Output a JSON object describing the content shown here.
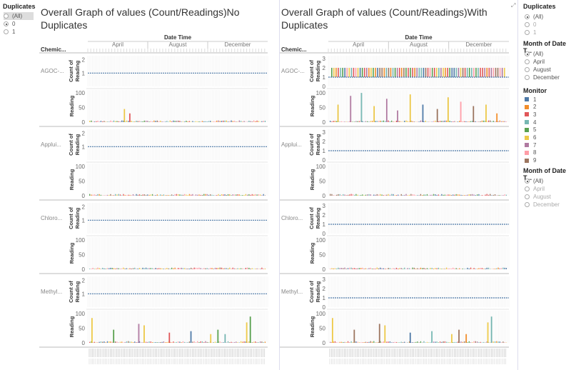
{
  "left_filter": {
    "title": "Duplicates",
    "options": [
      {
        "label": "(All)",
        "selected": false,
        "highlight": true
      },
      {
        "label": "0",
        "selected": true
      },
      {
        "label": "1",
        "selected": false
      }
    ]
  },
  "right_panel": {
    "duplicates": {
      "title": "Duplicates",
      "options": [
        {
          "label": "(All)",
          "selected": true
        },
        {
          "label": "0",
          "selected": false,
          "dim": true
        },
        {
          "label": "1",
          "selected": false,
          "dim": true
        }
      ]
    },
    "month_filter_1": {
      "title": "Month of Date T...",
      "options": [
        {
          "label": "(All)",
          "selected": true
        },
        {
          "label": "April",
          "selected": false
        },
        {
          "label": "August",
          "selected": false
        },
        {
          "label": "December",
          "selected": false
        }
      ]
    },
    "monitor_legend": {
      "title": "Monitor",
      "items": [
        {
          "label": "1",
          "color": "#4e79a7"
        },
        {
          "label": "2",
          "color": "#f28e2b"
        },
        {
          "label": "3",
          "color": "#e15759"
        },
        {
          "label": "4",
          "color": "#76b7b2"
        },
        {
          "label": "5",
          "color": "#59a14f"
        },
        {
          "label": "6",
          "color": "#edc948"
        },
        {
          "label": "7",
          "color": "#b07aa1"
        },
        {
          "label": "8",
          "color": "#ff9da7"
        },
        {
          "label": "9",
          "color": "#9c755f"
        }
      ]
    },
    "month_filter_2": {
      "title": "Month of Date T...",
      "options": [
        {
          "label": "(All)",
          "selected": true
        },
        {
          "label": "April",
          "selected": false,
          "dim": true
        },
        {
          "label": "August",
          "selected": false,
          "dim": true
        },
        {
          "label": "December",
          "selected": false,
          "dim": true
        }
      ]
    }
  },
  "chart_data": [
    {
      "type": "bar",
      "title": "Overall Graph of values (Count/Readings)No Duplicates",
      "column_header": "Date Time",
      "months": [
        "April",
        "August",
        "December"
      ],
      "row_header": "Chemic...",
      "chemicals": [
        "AGOC-...",
        "Applui...",
        "Chloro...",
        "Methyl..."
      ],
      "count_axis": {
        "label": "Count of Reading",
        "ticks": [
          1,
          2
        ],
        "ylim": [
          0,
          2.3
        ]
      },
      "reading_axis": {
        "label": "Reading",
        "ticks": [
          0,
          50,
          100
        ],
        "ylim": [
          0,
          110
        ]
      },
      "count_value": 1,
      "reading_series": [
        {
          "chemical": "AGOC-...",
          "monitor": "6",
          "peaks": [
            [
              0.2,
              45
            ],
            [
              0.23,
              30
            ]
          ]
        },
        {
          "chemical": "Applui...",
          "monitor": "6",
          "peaks": []
        },
        {
          "chemical": "Chloro...",
          "monitor": "6",
          "peaks": []
        },
        {
          "chemical": "Methyl...",
          "monitor": "6",
          "peaks": [
            [
              0.02,
              85
            ],
            [
              0.14,
              45
            ],
            [
              0.28,
              65
            ],
            [
              0.31,
              60
            ],
            [
              0.45,
              35
            ],
            [
              0.57,
              40
            ],
            [
              0.68,
              30
            ],
            [
              0.72,
              45
            ],
            [
              0.76,
              30
            ],
            [
              0.88,
              70
            ],
            [
              0.9,
              90
            ]
          ]
        }
      ]
    },
    {
      "type": "bar",
      "title": "Overall Graph of values (Count/Readings)With Duplicates",
      "column_header": "Date Time",
      "months": [
        "April",
        "August",
        "December"
      ],
      "row_header": "Chemic...",
      "chemicals": [
        "AGOC-...",
        "Applui...",
        "Chloro...",
        "Methyl..."
      ],
      "count_axis": {
        "label": "Count of Reading",
        "ticks": [
          0,
          1,
          2,
          3
        ],
        "ylim": [
          0,
          3.3
        ]
      },
      "reading_axis": {
        "label": "Reading",
        "ticks": [
          0,
          50,
          100
        ],
        "ylim": [
          0,
          110
        ]
      },
      "count_value": 1,
      "duplicate_count_value": 2,
      "reading_series": [
        {
          "chemical": "AGOC-...",
          "monitor": "6",
          "peaks": [
            [
              0.05,
              60
            ],
            [
              0.12,
              90
            ],
            [
              0.18,
              100
            ],
            [
              0.25,
              55
            ],
            [
              0.32,
              80
            ],
            [
              0.38,
              40
            ],
            [
              0.45,
              95
            ],
            [
              0.52,
              60
            ],
            [
              0.6,
              45
            ],
            [
              0.66,
              85
            ],
            [
              0.73,
              70
            ],
            [
              0.8,
              55
            ],
            [
              0.87,
              60
            ],
            [
              0.93,
              30
            ]
          ]
        },
        {
          "chemical": "Applui...",
          "monitor": "6",
          "peaks": []
        },
        {
          "chemical": "Chloro...",
          "monitor": "6",
          "peaks": []
        },
        {
          "chemical": "Methyl...",
          "monitor": "6",
          "peaks": [
            [
              0.02,
              85
            ],
            [
              0.14,
              45
            ],
            [
              0.28,
              65
            ],
            [
              0.31,
              60
            ],
            [
              0.45,
              35
            ],
            [
              0.57,
              40
            ],
            [
              0.68,
              30
            ],
            [
              0.72,
              45
            ],
            [
              0.76,
              30
            ],
            [
              0.88,
              70
            ],
            [
              0.9,
              90
            ]
          ]
        }
      ]
    }
  ]
}
